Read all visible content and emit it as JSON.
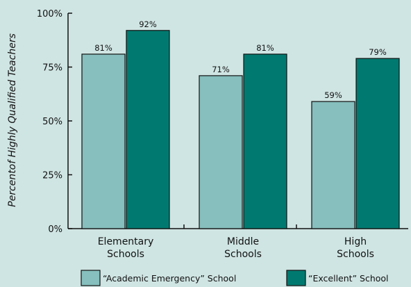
{
  "chart_data": {
    "type": "bar",
    "ylabel": "Percentof Highly Qualified Teachers",
    "ylim": [
      0,
      100
    ],
    "yticks": [
      0,
      25,
      50,
      75,
      100
    ],
    "ytick_labels": [
      "0%",
      "25%",
      "50%",
      "75%",
      "100%"
    ],
    "categories": [
      [
        "Elementary",
        "Schools"
      ],
      [
        "Middle",
        "Schools"
      ],
      [
        "High",
        "Schools"
      ]
    ],
    "series": [
      {
        "name": "“Academic Emergency” School",
        "color": "#86bfbd",
        "values": [
          81,
          71,
          59
        ],
        "labels": [
          "81%",
          "71%",
          "59%"
        ]
      },
      {
        "name": "“Excellent” School",
        "color": "#007a70",
        "values": [
          92,
          81,
          79
        ],
        "labels": [
          "92%",
          "81%",
          "79%"
        ]
      }
    ],
    "legend": "bottom",
    "grid": false
  }
}
